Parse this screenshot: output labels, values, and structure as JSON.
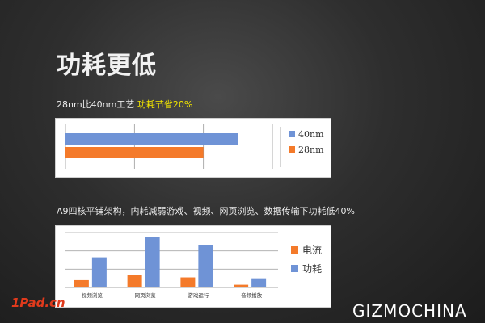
{
  "slide": {
    "title": "功耗更低",
    "subtitle1": {
      "prefix": "28nm比40nm工艺 ",
      "highlight": "功耗节省20%"
    },
    "subtitle2": "A9四核平铺架构，内耗减弱游戏、视频、网页浏览、数据传输下功耗低40%",
    "logo": "1Pad.cn",
    "watermark": "GIZMOCHINA"
  },
  "colors": {
    "blue": "#6f93d6",
    "orange": "#f47a2a",
    "highlight": "#f2e600"
  },
  "chart_data": [
    {
      "type": "bar",
      "orientation": "horizontal",
      "series": [
        {
          "name": "40nm",
          "values": [
            1.0
          ],
          "color": "#6f93d6"
        },
        {
          "name": "28nm",
          "values": [
            0.8
          ],
          "color": "#f47a2a"
        }
      ],
      "categories": [
        ""
      ],
      "xlim": [
        0,
        1.2
      ],
      "grid": true,
      "legend": "right"
    },
    {
      "type": "bar",
      "categories": [
        "视频浏览",
        "网页浏览",
        "游戏运行",
        "音频播放"
      ],
      "series": [
        {
          "name": "电流",
          "values": [
            0.8,
            1.4,
            1.1,
            0.3
          ],
          "color": "#f47a2a"
        },
        {
          "name": "功耗",
          "values": [
            3.3,
            5.5,
            4.6,
            1.0
          ],
          "color": "#6f93d6"
        }
      ],
      "ylim": [
        0,
        6
      ],
      "grid": true,
      "legend": "right"
    }
  ]
}
